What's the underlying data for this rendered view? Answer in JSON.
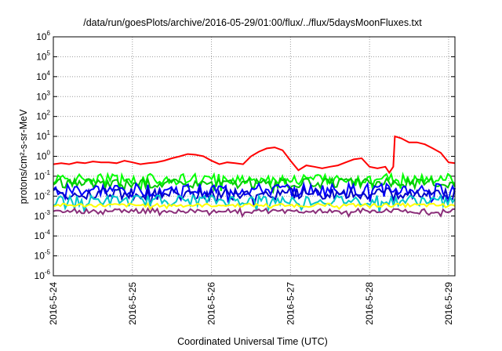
{
  "chart_data": {
    "type": "line",
    "title": "/data/run/goesPlots/archive/2016-05-29/01:00/flux/../flux/5daysMoonFluxes.txt",
    "xlabel": "Coordinated Universal Time (UTC)",
    "ylabel": "protons/cm²-s-sr-MeV",
    "y_scale": "log",
    "ylim": [
      1e-06,
      1000000.0
    ],
    "y_tick_exponents": [
      -6,
      -5,
      -4,
      -3,
      -2,
      -1,
      0,
      1,
      2,
      3,
      4,
      5,
      6
    ],
    "x_tick_labels": [
      "2016-5-24",
      "2016-5-25",
      "2016-5-26",
      "2016-5-27",
      "2016-5-28",
      "2016-5-29"
    ],
    "xlim_days": [
      0,
      5.08
    ],
    "grid": true,
    "legend": "none",
    "series": [
      {
        "color": "#ff0000",
        "points": [
          [
            0.0,
            0.4
          ],
          [
            0.1,
            0.45
          ],
          [
            0.2,
            0.4
          ],
          [
            0.3,
            0.5
          ],
          [
            0.4,
            0.45
          ],
          [
            0.5,
            0.55
          ],
          [
            0.6,
            0.5
          ],
          [
            0.7,
            0.5
          ],
          [
            0.8,
            0.45
          ],
          [
            0.9,
            0.6
          ],
          [
            1.0,
            0.5
          ],
          [
            1.1,
            0.4
          ],
          [
            1.2,
            0.45
          ],
          [
            1.3,
            0.5
          ],
          [
            1.4,
            0.6
          ],
          [
            1.5,
            0.8
          ],
          [
            1.6,
            1.0
          ],
          [
            1.7,
            1.3
          ],
          [
            1.8,
            1.2
          ],
          [
            1.9,
            1.0
          ],
          [
            2.0,
            0.6
          ],
          [
            2.1,
            0.4
          ],
          [
            2.2,
            0.5
          ],
          [
            2.3,
            0.45
          ],
          [
            2.4,
            0.4
          ],
          [
            2.5,
            1.0
          ],
          [
            2.6,
            1.7
          ],
          [
            2.7,
            2.5
          ],
          [
            2.8,
            2.8
          ],
          [
            2.9,
            2.0
          ],
          [
            3.0,
            0.6
          ],
          [
            3.1,
            0.2
          ],
          [
            3.2,
            0.35
          ],
          [
            3.3,
            0.3
          ],
          [
            3.4,
            0.25
          ],
          [
            3.5,
            0.3
          ],
          [
            3.6,
            0.35
          ],
          [
            3.7,
            0.5
          ],
          [
            3.8,
            0.7
          ],
          [
            3.9,
            0.8
          ],
          [
            4.0,
            0.3
          ],
          [
            4.1,
            0.25
          ],
          [
            4.2,
            0.3
          ],
          [
            4.25,
            0.15
          ],
          [
            4.3,
            0.3
          ],
          [
            4.32,
            10
          ],
          [
            4.4,
            8
          ],
          [
            4.5,
            5
          ],
          [
            4.6,
            5
          ],
          [
            4.7,
            4
          ],
          [
            4.8,
            2.5
          ],
          [
            4.9,
            1.5
          ],
          [
            5.0,
            0.5
          ],
          [
            5.08,
            0.45
          ]
        ]
      },
      {
        "color": "#00ff00",
        "base": 0.07,
        "spread": 0.45
      },
      {
        "color": "#00c800",
        "base": 0.045,
        "spread": 0.4
      },
      {
        "color": "#0000ff",
        "base": 0.02,
        "spread": 0.55
      },
      {
        "color": "#0000c8",
        "base": 0.013,
        "spread": 0.5
      },
      {
        "color": "#00c8c8",
        "base": 0.006,
        "spread": 0.45
      },
      {
        "color": "#ffff00",
        "base": 0.0035,
        "spread": 0.15
      },
      {
        "color": "#8b2f7a",
        "base": 0.0018,
        "spread": 0.2
      }
    ]
  }
}
